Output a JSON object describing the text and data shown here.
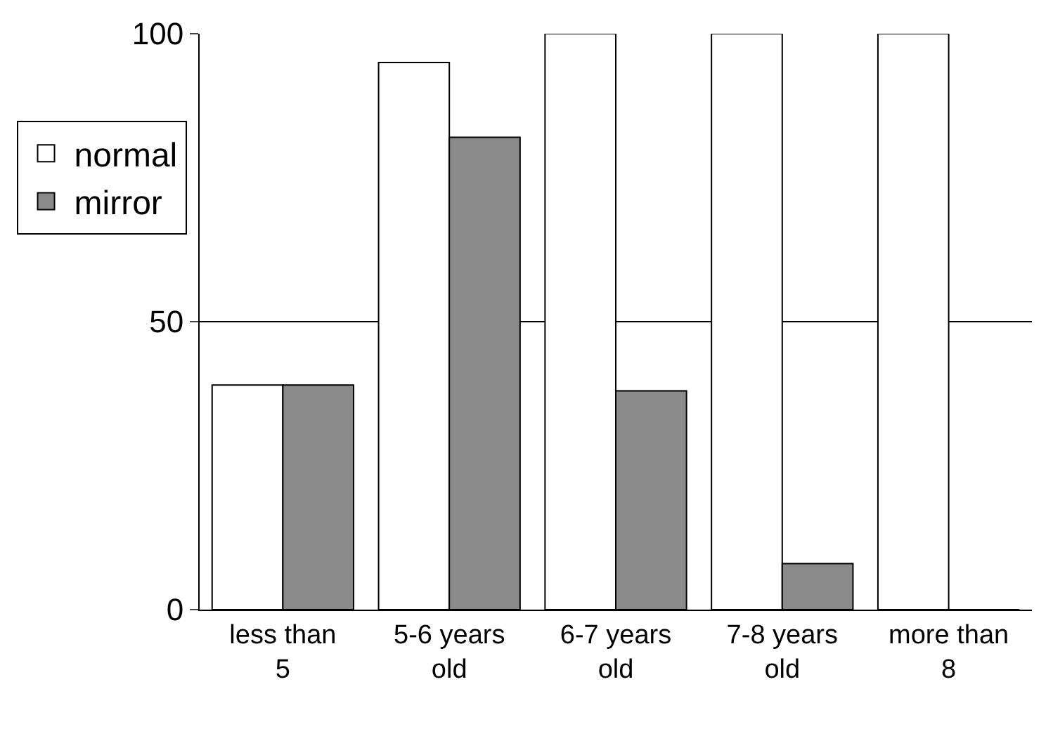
{
  "chart_data": {
    "type": "bar",
    "categories": [
      "less than 5",
      "5-6 years old",
      "6-7 years old",
      "7-8 years old",
      "more than 8"
    ],
    "series": [
      {
        "name": "normal",
        "color": "#ffffff",
        "values": [
          39,
          95,
          100,
          100,
          100
        ]
      },
      {
        "name": "mirror",
        "color": "#8a8a8a",
        "values": [
          39,
          82,
          38,
          8,
          0
        ]
      }
    ],
    "ylim": [
      0,
      100
    ],
    "yticks": [
      0,
      50,
      100
    ],
    "grid": "y",
    "legend": "left"
  }
}
